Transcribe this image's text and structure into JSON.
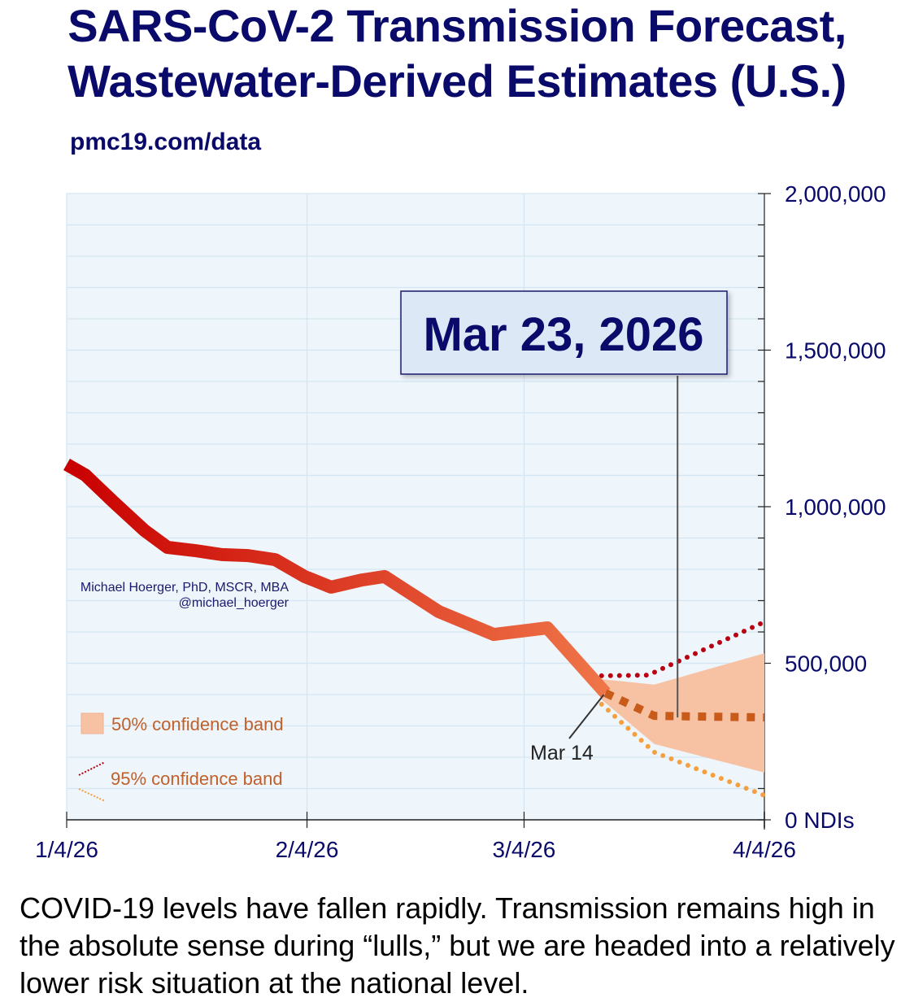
{
  "title_line1": "SARS-CoV-2 Transmission Forecast,",
  "title_line2": "Wastewater-Derived Estimates (U.S.)",
  "source": "pmc19.com/data",
  "caption": "COVID-19 levels have fallen rapidly. Transmission remains high in the absolute sense during “lulls,” but we are headed into a relatively lower risk situation at the national level.",
  "colors": {
    "title": "#0a0a6b",
    "plot_bg": "#eef5fb",
    "grid": "#d4e6f3",
    "line_start": "#c80000",
    "line_end": "#ef7548",
    "median": "#c85a1a",
    "band50": "#f7c2a4",
    "upper95": "#b80010",
    "lower95": "#f5a040",
    "legend_text": "#c0602a",
    "callout_bg": "#dce8f5"
  },
  "chart_data": {
    "type": "line",
    "title": "SARS-CoV-2 Transmission Forecast, Wastewater-Derived Estimates (U.S.)",
    "xlabel": "",
    "ylabel": "NDIs",
    "x_start": "2026-01-04",
    "x_range_days": [
      0,
      90
    ],
    "ylim": [
      0,
      2000000
    ],
    "x_ticks": [
      {
        "day": 0,
        "label": "1/4/26"
      },
      {
        "day": 31,
        "label": "2/4/26"
      },
      {
        "day": 59,
        "label": "3/4/26"
      },
      {
        "day": 90,
        "label": "4/4/26"
      }
    ],
    "y_ticks": [
      {
        "value": 2000000,
        "label": "2,000,000"
      },
      {
        "value": 1500000,
        "label": "1,500,000"
      },
      {
        "value": 1000000,
        "label": "1,000,000"
      },
      {
        "value": 500000,
        "label": "500,000"
      },
      {
        "value": 0,
        "label": "0  NDIs"
      }
    ],
    "y_minor_step": 100000,
    "grid": true,
    "series": [
      {
        "name": "Estimated transmission (NDIs)",
        "days": [
          0,
          2.4,
          6,
          10,
          13,
          16.5,
          20,
          23.4,
          26.9,
          30.7,
          34.1,
          38.1,
          41,
          48,
          55.1,
          62,
          69.5
        ],
        "values": [
          1135000,
          1101000,
          1016000,
          925000,
          870000,
          860000,
          847000,
          844000,
          831000,
          777000,
          743000,
          766000,
          777000,
          665000,
          592000,
          613000,
          405000
        ]
      },
      {
        "name": "Forecast median",
        "days": [
          69.5,
          75.8,
          90
        ],
        "values": [
          405000,
          332000,
          327000
        ]
      },
      {
        "name": "50% confidence band upper",
        "days": [
          69,
          75.8,
          90
        ],
        "values": [
          449000,
          432000,
          532000
        ]
      },
      {
        "name": "50% confidence band lower",
        "days": [
          69,
          75.8,
          90
        ],
        "values": [
          384000,
          242000,
          151000
        ]
      },
      {
        "name": "95% confidence band upper",
        "days": [
          69,
          75,
          90
        ],
        "values": [
          460000,
          462000,
          632000
        ]
      },
      {
        "name": "95% confidence band lower",
        "days": [
          69,
          75.8,
          90
        ],
        "values": [
          369000,
          216000,
          78000
        ]
      }
    ],
    "legend": [
      {
        "label": "50% confidence band",
        "kind": "band50"
      },
      {
        "label": "95% confidence band",
        "kind": "band95"
      }
    ],
    "legend_position": "bottom-left",
    "annotations": {
      "callout_date": "Mar 23, 2026",
      "callout_day": 78.8,
      "callout_value": 327000,
      "last_data_label": "Mar 14",
      "last_data_day": 69.5,
      "last_data_value": 405000,
      "author": "Michael Hoerger, PhD, MSCR, MBA",
      "handle": "@michael_hoerger"
    }
  }
}
